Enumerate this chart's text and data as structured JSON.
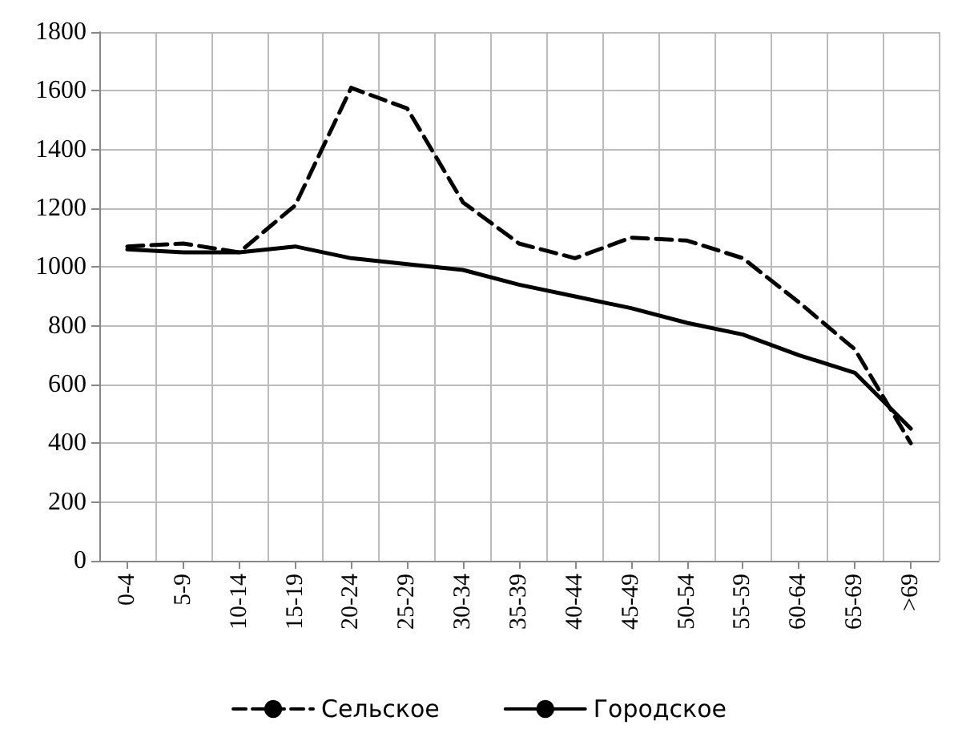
{
  "chart_data": {
    "type": "line",
    "categories": [
      "0-4",
      "5-9",
      "10-14",
      "15-19",
      "20-24",
      "25-29",
      "30-34",
      "35-39",
      "40-44",
      "45-49",
      "50-54",
      "55-59",
      "60-64",
      "65-69",
      ">69"
    ],
    "series": [
      {
        "name": "Сельское",
        "color": "#000000",
        "line_style": "dashed",
        "values": [
          1070,
          1080,
          1050,
          1210,
          1610,
          1540,
          1220,
          1080,
          1030,
          1100,
          1090,
          1030,
          880,
          720,
          400
        ]
      },
      {
        "name": "Городское",
        "color": "#000000",
        "line_style": "solid",
        "values": [
          1060,
          1050,
          1050,
          1070,
          1030,
          1010,
          990,
          940,
          900,
          860,
          810,
          770,
          700,
          640,
          450
        ]
      }
    ],
    "ylim": [
      0,
      1800
    ],
    "yticks": [
      0,
      200,
      400,
      600,
      800,
      1000,
      1200,
      1400,
      1600,
      1800
    ],
    "grid": true,
    "legend": "bottom",
    "marker": "none"
  }
}
